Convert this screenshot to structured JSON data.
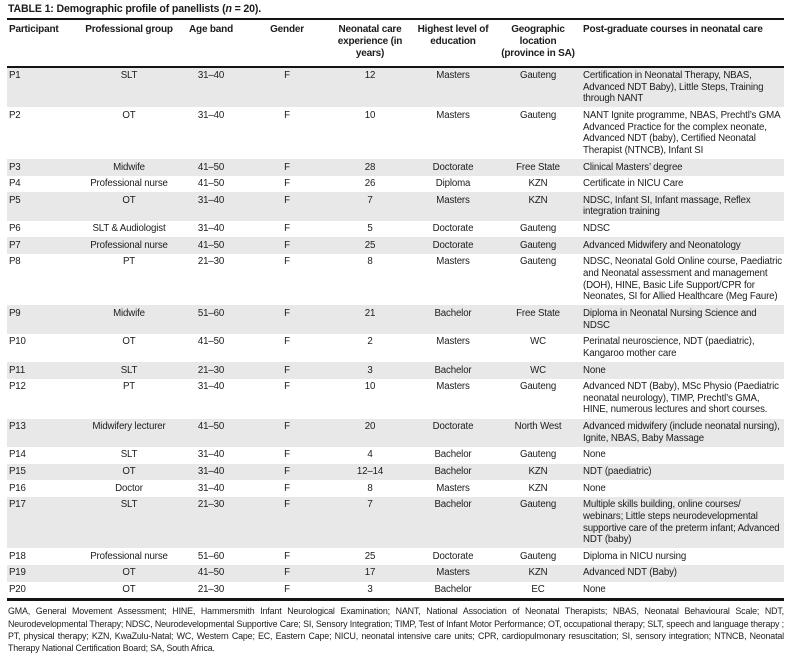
{
  "colors": {
    "row_stripe": "#e8e8e8",
    "rule": "#141414",
    "text": "#1c1c1c"
  },
  "table": {
    "title": {
      "label": "TABLE 1:",
      "text": " Demographic profile of panellists (",
      "n": "n",
      "suffix": " = 20)."
    },
    "columns": [
      "Participant",
      "Professional group",
      "Age band",
      "Gender",
      "Neonatal care experience (in years)",
      "Highest level of education",
      "Geographic location (province in SA)",
      "Post-graduate courses in neonatal care"
    ],
    "rows": [
      {
        "participant": "P1",
        "group": "SLT",
        "age_band": "31–40",
        "gender": "F",
        "experience": "12",
        "education": "Masters",
        "location": "Gauteng",
        "courses": "Certification in Neonatal Therapy, NBAS, Advanced NDT Baby), Little Steps, Training through NANT"
      },
      {
        "participant": "P2",
        "group": "OT",
        "age_band": "31–40",
        "gender": "F",
        "experience": "10",
        "education": "Masters",
        "location": "Gauteng",
        "courses": "NANT Ignite programme, NBAS, Prechtl’s GMA Advanced Practice for the complex neonate, Advanced NDT (baby), Certified Neonatal Therapist (NTNCB), Infant SI"
      },
      {
        "participant": "P3",
        "group": "Midwife",
        "age_band": "41–50",
        "gender": "F",
        "experience": "28",
        "education": "Doctorate",
        "location": "Free State",
        "courses": "Clinical Masters’ degree"
      },
      {
        "participant": "P4",
        "group": "Professional nurse",
        "age_band": "41–50",
        "gender": "F",
        "experience": "26",
        "education": "Diploma",
        "location": "KZN",
        "courses": "Certificate in NICU Care"
      },
      {
        "participant": "P5",
        "group": "OT",
        "age_band": "31–40",
        "gender": "F",
        "experience": "7",
        "education": "Masters",
        "location": "KZN",
        "courses": "NDSC, Infant SI, Infant massage, Reflex integration training"
      },
      {
        "participant": "P6",
        "group": "SLT & Audiologist",
        "age_band": "31–40",
        "gender": "F",
        "experience": "5",
        "education": "Doctorate",
        "location": "Gauteng",
        "courses": "NDSC"
      },
      {
        "participant": "P7",
        "group": "Professional nurse",
        "age_band": "41–50",
        "gender": "F",
        "experience": "25",
        "education": "Doctorate",
        "location": "Gauteng",
        "courses": "Advanced Midwifery and Neonatology"
      },
      {
        "participant": "P8",
        "group": "PT",
        "age_band": "21–30",
        "gender": "F",
        "experience": "8",
        "education": "Masters",
        "location": "Gauteng",
        "courses": "NDSC, Neonatal Gold Online course, Paediatric and Neonatal assessment and management (DOH), HINE, Basic Life Support/CPR for Neonates, SI for Allied Healthcare (Meg Faure)"
      },
      {
        "participant": "P9",
        "group": "Midwife",
        "age_band": "51–60",
        "gender": "F",
        "experience": "21",
        "education": "Bachelor",
        "location": "Free State",
        "courses": "Diploma in Neonatal Nursing Science and NDSC"
      },
      {
        "participant": "P10",
        "group": "OT",
        "age_band": "41–50",
        "gender": "F",
        "experience": "2",
        "education": "Masters",
        "location": "WC",
        "courses": "Perinatal neuroscience, NDT (paediatric), Kangaroo mother care"
      },
      {
        "participant": "P11",
        "group": "SLT",
        "age_band": "21–30",
        "gender": "F",
        "experience": "3",
        "education": "Bachelor",
        "location": "WC",
        "courses": "None"
      },
      {
        "participant": "P12",
        "group": "PT",
        "age_band": "31–40",
        "gender": "F",
        "experience": "10",
        "education": "Masters",
        "location": "Gauteng",
        "courses": "Advanced NDT (Baby), MSc Physio (Paediatric neonatal neurology), TIMP, Prechtl’s GMA, HINE, numerous lectures and short courses."
      },
      {
        "participant": "P13",
        "group": "Midwifery lecturer",
        "age_band": "41–50",
        "gender": "F",
        "experience": "20",
        "education": "Doctorate",
        "location": "North West",
        "courses": "Advanced midwifery (include neonatal nursing), Ignite, NBAS, Baby Massage"
      },
      {
        "participant": "P14",
        "group": "SLT",
        "age_band": "31–40",
        "gender": "F",
        "experience": "4",
        "education": "Bachelor",
        "location": "Gauteng",
        "courses": "None"
      },
      {
        "participant": "P15",
        "group": "OT",
        "age_band": "31–40",
        "gender": "F",
        "experience": "12–14",
        "education": "Bachelor",
        "location": "KZN",
        "courses": "NDT (paediatric)"
      },
      {
        "participant": "P16",
        "group": "Doctor",
        "age_band": "31–40",
        "gender": "F",
        "experience": "8",
        "education": "Masters",
        "location": "KZN",
        "courses": "None"
      },
      {
        "participant": "P17",
        "group": "SLT",
        "age_band": "21–30",
        "gender": "F",
        "experience": "7",
        "education": "Bachelor",
        "location": "Gauteng",
        "courses": "Multiple skills building, online courses/ webinars; Little steps neurodevelopmental supportive care of the preterm infant; Advanced NDT (baby)"
      },
      {
        "participant": "P18",
        "group": "Professional nurse",
        "age_band": "51–60",
        "gender": "F",
        "experience": "25",
        "education": "Doctorate",
        "location": "Gauteng",
        "courses": "Diploma in NICU nursing"
      },
      {
        "participant": "P19",
        "group": "OT",
        "age_band": "41–50",
        "gender": "F",
        "experience": "17",
        "education": "Masters",
        "location": "KZN",
        "courses": "Advanced NDT (Baby)"
      },
      {
        "participant": "P20",
        "group": "OT",
        "age_band": "21–30",
        "gender": "F",
        "experience": "3",
        "education": "Bachelor",
        "location": "EC",
        "courses": "None"
      }
    ],
    "footnote": "GMA, General Movement Assessment; HINE, Hammersmith Infant Neurological Examination; NANT, National Association of Neonatal Therapists; NBAS, Neonatal Behavioural Scale; NDT, Neurodevelopmental Therapy; NDSC, Neurodevelopmental Supportive Care; SI, Sensory Integration; TIMP, Test of Infant Motor Performance; OT, occupational therapy; SLT, speech and language therapy ; PT, physical therapy; KZN, KwaZulu-Natal; WC, Western Cape; EC, Eastern Cape; NICU, neonatal intensive care units; CPR, cardiopulmonary resuscitation; SI, sensory integration; NTNCB, Neonatal Therapy National Certification Board; SA, South Africa."
  }
}
